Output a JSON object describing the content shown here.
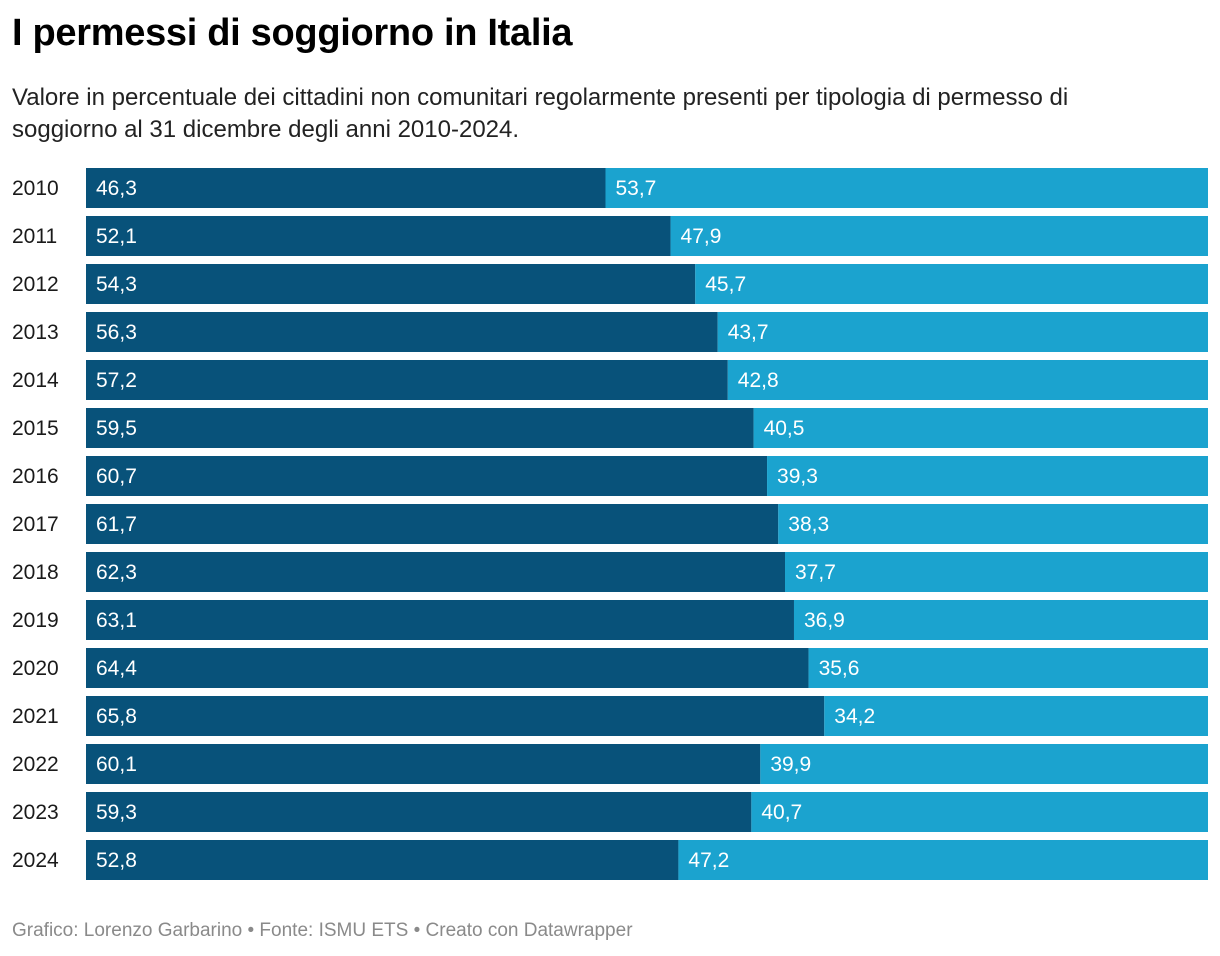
{
  "header": {
    "title": "I permessi di soggiorno in Italia",
    "subtitle": "Valore in percentuale dei cittadini non comunitari regolarmente presenti per tipologia di permesso di soggiorno al 31 dicembre degli anni 2010-2024."
  },
  "footer": {
    "credit": "Grafico: Lorenzo Garbarino • Fonte: ISMU ETS • Creato con Datawrapper"
  },
  "colors": {
    "series_1": "#08527a",
    "series_2": "#1ba3cf"
  },
  "chart_data": {
    "type": "bar",
    "orientation": "horizontal",
    "stacked": true,
    "xlim": [
      0,
      100
    ],
    "grid": false,
    "legend": "none",
    "title": "I permessi di soggiorno in Italia",
    "subtitle": "Valore in percentuale dei cittadini non comunitari regolarmente presenti per tipologia di permesso di soggiorno al 31 dicembre degli anni 2010-2024.",
    "categories": [
      "2010",
      "2011",
      "2012",
      "2013",
      "2014",
      "2015",
      "2016",
      "2017",
      "2018",
      "2019",
      "2020",
      "2021",
      "2022",
      "2023",
      "2024"
    ],
    "series": [
      {
        "values": [
          46.3,
          52.1,
          54.3,
          56.3,
          57.2,
          59.5,
          60.7,
          61.7,
          62.3,
          63.1,
          64.4,
          65.8,
          60.1,
          59.3,
          52.8
        ],
        "labels": [
          "46,3",
          "52,1",
          "54,3",
          "56,3",
          "57,2",
          "59,5",
          "60,7",
          "61,7",
          "62,3",
          "63,1",
          "64,4",
          "65,8",
          "60,1",
          "59,3",
          "52,8"
        ]
      },
      {
        "values": [
          53.7,
          47.9,
          45.7,
          43.7,
          42.8,
          40.5,
          39.3,
          38.3,
          37.7,
          36.9,
          35.6,
          34.2,
          39.9,
          40.7,
          47.2
        ],
        "labels": [
          "53,7",
          "47,9",
          "45,7",
          "43,7",
          "42,8",
          "40,5",
          "39,3",
          "38,3",
          "37,7",
          "36,9",
          "35,6",
          "34,2",
          "39,9",
          "40,7",
          "47,2"
        ]
      }
    ]
  }
}
